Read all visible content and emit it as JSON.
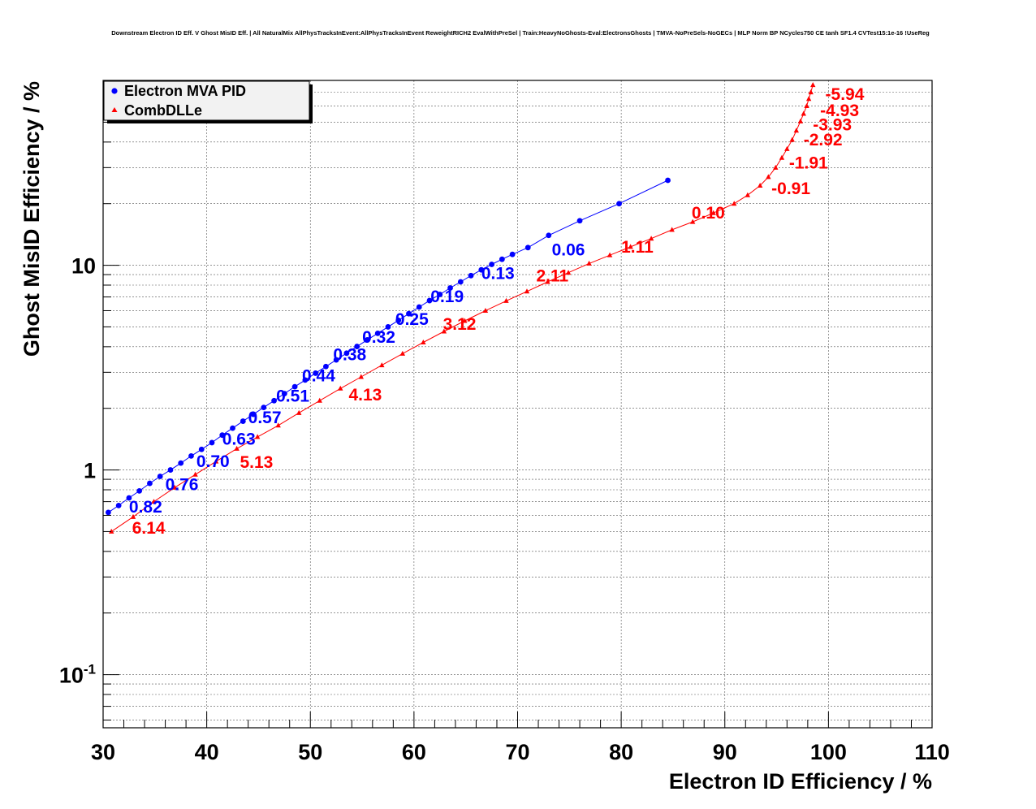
{
  "chart_data": {
    "type": "line",
    "title": "Downstream Electron ID Eff. V Ghost MisID Eff. | All NaturalMix AllPhysTracksInEvent:AllPhysTracksInEvent ReweightRICH2 EvalWithPreSel | Train:HeavyNoGhosts-Eval:ElectronsGhosts | TMVA-NoPreSels-NoGECs | MLP Norm BP NCycles750 CE tanh SF1.4 CVTest15:1e-16 !UseReg",
    "xlabel": "Electron ID Efficiency / %",
    "ylabel": "Ghost MisID Efficiency / %",
    "xlim": [
      30,
      110
    ],
    "ylim": [
      0.055,
      80
    ],
    "yscale": "log",
    "grid": true,
    "legend_position": "top-left",
    "x_ticks": [
      30,
      40,
      50,
      60,
      70,
      80,
      90,
      100,
      110
    ],
    "y_ticks": [
      {
        "value": 0.1,
        "base": "10",
        "exp": "-1"
      },
      {
        "value": 1,
        "base": "1",
        "exp": ""
      },
      {
        "value": 10,
        "base": "10",
        "exp": ""
      }
    ],
    "series": [
      {
        "name": "Electron MVA PID",
        "color": "#0000ff",
        "marker": "circle",
        "x": [
          30.5,
          31.5,
          32.5,
          33.5,
          34.5,
          35.5,
          36.5,
          37.5,
          38.5,
          39.5,
          40.5,
          41.5,
          42.5,
          43.5,
          44.5,
          45.5,
          46.5,
          47.5,
          48.5,
          49.5,
          50.5,
          51.5,
          52.5,
          53.5,
          54.5,
          55.5,
          56.5,
          57.5,
          58.5,
          59.5,
          60.5,
          61.5,
          62.5,
          63.5,
          64.5,
          65.5,
          66.5,
          67.5,
          68.5,
          69.5,
          71.0,
          73.0,
          76.0,
          79.8,
          84.5
        ],
        "y": [
          0.62,
          0.67,
          0.73,
          0.79,
          0.86,
          0.93,
          1.0,
          1.08,
          1.17,
          1.26,
          1.36,
          1.48,
          1.6,
          1.73,
          1.87,
          2.02,
          2.18,
          2.36,
          2.55,
          2.75,
          2.97,
          3.2,
          3.45,
          3.72,
          4.01,
          4.32,
          4.65,
          5.0,
          5.38,
          5.8,
          6.25,
          6.72,
          7.2,
          7.75,
          8.3,
          8.9,
          9.5,
          10.1,
          10.7,
          11.3,
          12.2,
          14.0,
          16.5,
          20.0,
          26.0
        ]
      },
      {
        "name": "CombDLLe",
        "color": "#ff0000",
        "marker": "triangle",
        "x": [
          30.8,
          32.9,
          34.9,
          36.9,
          38.9,
          40.9,
          42.9,
          44.9,
          46.9,
          48.9,
          50.9,
          52.9,
          54.9,
          56.9,
          58.9,
          60.9,
          62.9,
          64.9,
          66.9,
          68.9,
          70.9,
          72.9,
          74.9,
          76.9,
          78.9,
          80.9,
          82.9,
          84.9,
          86.9,
          88.9,
          90.9,
          92.2,
          93.4,
          94.2,
          94.9,
          95.5,
          96.0,
          96.5,
          96.9,
          97.3,
          97.6,
          97.9,
          98.1,
          98.3,
          98.5
        ],
        "y": [
          0.5,
          0.59,
          0.7,
          0.82,
          0.95,
          1.1,
          1.27,
          1.45,
          1.65,
          1.9,
          2.18,
          2.5,
          2.85,
          3.25,
          3.7,
          4.2,
          4.75,
          5.35,
          6.0,
          6.7,
          7.45,
          8.3,
          9.2,
          10.2,
          11.2,
          12.3,
          13.5,
          14.9,
          16.3,
          18.0,
          20.0,
          22.0,
          24.5,
          27.0,
          30.0,
          33.5,
          37.0,
          41.0,
          45.5,
          50.5,
          55.0,
          60.0,
          65.0,
          70.0,
          76.0
        ]
      }
    ],
    "annotations": [
      {
        "series": "Electron MVA PID",
        "text": "0.82",
        "x": 32.5,
        "y": 0.665
      },
      {
        "series": "Electron MVA PID",
        "text": "0.76",
        "x": 36.0,
        "y": 0.855
      },
      {
        "series": "Electron MVA PID",
        "text": "0.70",
        "x": 39.0,
        "y": 1.11
      },
      {
        "series": "Electron MVA PID",
        "text": "0.63",
        "x": 41.5,
        "y": 1.43
      },
      {
        "series": "Electron MVA PID",
        "text": "0.57",
        "x": 44.0,
        "y": 1.82
      },
      {
        "series": "Electron MVA PID",
        "text": "0.51",
        "x": 46.7,
        "y": 2.32
      },
      {
        "series": "Electron MVA PID",
        "text": "0.44",
        "x": 49.2,
        "y": 2.92
      },
      {
        "series": "Electron MVA PID",
        "text": "0.38",
        "x": 52.2,
        "y": 3.7
      },
      {
        "series": "Electron MVA PID",
        "text": "0.32",
        "x": 55.0,
        "y": 4.5
      },
      {
        "series": "Electron MVA PID",
        "text": "0.25",
        "x": 58.2,
        "y": 5.5
      },
      {
        "series": "Electron MVA PID",
        "text": "0.19",
        "x": 61.6,
        "y": 7.1
      },
      {
        "series": "Electron MVA PID",
        "text": "0.13",
        "x": 66.5,
        "y": 9.2
      },
      {
        "series": "Electron MVA PID",
        "text": "0.06",
        "x": 73.3,
        "y": 12.0
      },
      {
        "series": "CombDLLe",
        "text": "6.14",
        "x": 32.8,
        "y": 0.525
      },
      {
        "series": "CombDLLe",
        "text": "5.13",
        "x": 43.2,
        "y": 1.1
      },
      {
        "series": "CombDLLe",
        "text": "4.13",
        "x": 53.7,
        "y": 2.35
      },
      {
        "series": "CombDLLe",
        "text": "3.12",
        "x": 62.8,
        "y": 5.2
      },
      {
        "series": "CombDLLe",
        "text": "2.11",
        "x": 71.8,
        "y": 8.95
      },
      {
        "series": "CombDLLe",
        "text": "1.11",
        "x": 80.0,
        "y": 12.4
      },
      {
        "series": "CombDLLe",
        "text": "0.10",
        "x": 86.8,
        "y": 18.2
      },
      {
        "series": "CombDLLe",
        "text": "-0.91",
        "x": 94.5,
        "y": 24.0
      },
      {
        "series": "CombDLLe",
        "text": "-1.91",
        "x": 96.2,
        "y": 32.0
      },
      {
        "series": "CombDLLe",
        "text": "-2.92",
        "x": 97.6,
        "y": 41.5
      },
      {
        "series": "CombDLLe",
        "text": "-3.93",
        "x": 98.5,
        "y": 49.0
      },
      {
        "series": "CombDLLe",
        "text": "-4.93",
        "x": 99.2,
        "y": 57.5
      },
      {
        "series": "CombDLLe",
        "text": "-5.94",
        "x": 99.7,
        "y": 69.0
      }
    ]
  }
}
